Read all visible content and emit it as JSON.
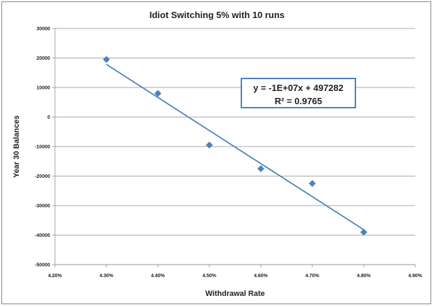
{
  "chart_data": {
    "type": "scatter",
    "title": "Idiot Switching 5% with 10 runs",
    "xlabel": "Withdrawal Rate",
    "ylabel": "Year 30 Balances",
    "xlim": [
      0.042,
      0.049
    ],
    "ylim": [
      -50000,
      30000
    ],
    "x_ticks": [
      "4.20%",
      "4.30%",
      "4.40%",
      "4.50%",
      "4.60%",
      "4.70%",
      "4.80%",
      "4.90%"
    ],
    "y_ticks": [
      "30000",
      "20000",
      "10000",
      "0",
      "-10000",
      "-20000",
      "-30000",
      "-40000",
      "-50000"
    ],
    "grid": "horizontal",
    "legend": "none",
    "marker_color": "#4f81bd",
    "series": [
      {
        "x": [
          0.043,
          0.044,
          0.045,
          0.046,
          0.047,
          0.048
        ],
        "y": [
          19500,
          8000,
          -9500,
          -17500,
          -22500,
          -39000
        ]
      }
    ],
    "trendline": {
      "type": "linear",
      "equation": "y = -1E+07x + 497282",
      "r_squared": "R² = 0.9765"
    }
  }
}
